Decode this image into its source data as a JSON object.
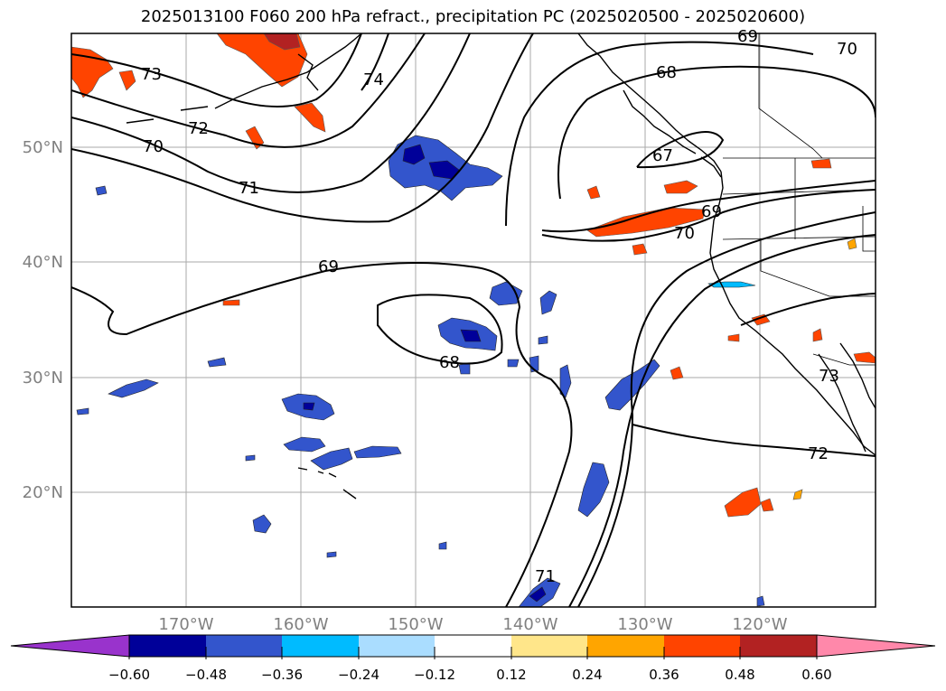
{
  "title": "2025013100 F060 200 hPa refract., precipitation PC (2025020500 - 2025020600)",
  "latitude_labels": [
    "50°N",
    "40°N",
    "30°N",
    "20°N"
  ],
  "longitude_labels": [
    "170°W",
    "160°W",
    "150°W",
    "140°W",
    "130°W",
    "120°W"
  ],
  "contour_labels": [
    "73",
    "72",
    "70",
    "71",
    "69",
    "68",
    "67",
    "69",
    "70",
    "69",
    "68",
    "71",
    "72",
    "73",
    "70",
    "74"
  ],
  "colorbar": {
    "tick_labels": [
      "−0.60",
      "−0.48",
      "−0.36",
      "−0.24",
      "−0.12",
      "0.12",
      "0.24",
      "0.36",
      "0.48",
      "0.60"
    ],
    "colors": [
      "#9933cc",
      "#000099",
      "#3355cc",
      "#00bbff",
      "#aaddff",
      "#ffffff",
      "#ffe68a",
      "#ffa500",
      "#ff4400",
      "#b22222",
      "#ff88aa"
    ]
  },
  "colors": {
    "contour": "#000000",
    "grid": "#aaaaaa",
    "coast": "#000000",
    "axis_label": "#808080"
  }
}
